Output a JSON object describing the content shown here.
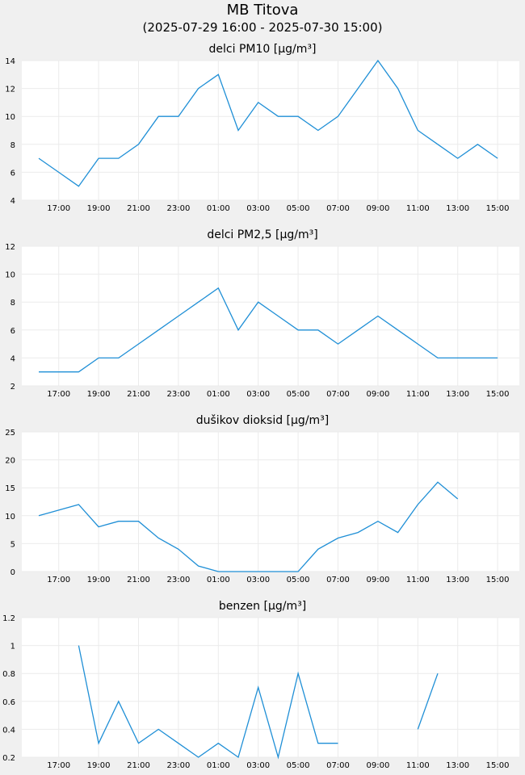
{
  "page": {
    "title": "MB Titova",
    "subtitle": "(2025-07-29 16:00 - 2025-07-30 15:00)"
  },
  "colors": {
    "background": "#f0f0f0",
    "plot_background": "#ffffff",
    "grid": "#ebebeb",
    "line": "#1f8fd6"
  },
  "chart_data": [
    {
      "type": "line",
      "title": "delci PM10 [µg/m³]",
      "x": [
        "16:00",
        "17:00",
        "18:00",
        "19:00",
        "20:00",
        "21:00",
        "22:00",
        "23:00",
        "00:00",
        "01:00",
        "02:00",
        "03:00",
        "04:00",
        "05:00",
        "06:00",
        "07:00",
        "08:00",
        "09:00",
        "10:00",
        "11:00",
        "12:00",
        "13:00",
        "14:00",
        "15:00"
      ],
      "x_tick_labels": [
        "17:00",
        "19:00",
        "21:00",
        "23:00",
        "01:00",
        "03:00",
        "05:00",
        "07:00",
        "09:00",
        "11:00",
        "13:00",
        "15:00"
      ],
      "series": [
        {
          "values": [
            7,
            6,
            5,
            7,
            7,
            8,
            10,
            10,
            12,
            13,
            9,
            11,
            10,
            10,
            9,
            10,
            12,
            14,
            12,
            9,
            8,
            7,
            8,
            7
          ]
        }
      ],
      "ylim": [
        4,
        14
      ],
      "y_ticks": [
        "4",
        "6",
        "8",
        "10",
        "12",
        "14"
      ],
      "grid": true
    },
    {
      "type": "line",
      "title": "delci PM2,5 [µg/m³]",
      "x": [
        "16:00",
        "17:00",
        "18:00",
        "19:00",
        "20:00",
        "21:00",
        "22:00",
        "23:00",
        "00:00",
        "01:00",
        "02:00",
        "03:00",
        "04:00",
        "05:00",
        "06:00",
        "07:00",
        "08:00",
        "09:00",
        "10:00",
        "11:00",
        "12:00",
        "13:00",
        "14:00",
        "15:00"
      ],
      "x_tick_labels": [
        "17:00",
        "19:00",
        "21:00",
        "23:00",
        "01:00",
        "03:00",
        "05:00",
        "07:00",
        "09:00",
        "11:00",
        "13:00",
        "15:00"
      ],
      "series": [
        {
          "values": [
            3,
            3,
            3,
            4,
            4,
            5,
            6,
            7,
            8,
            9,
            6,
            8,
            7,
            6,
            6,
            5,
            6,
            7,
            6,
            5,
            4,
            4,
            4,
            4
          ]
        }
      ],
      "ylim": [
        2,
        12
      ],
      "y_ticks": [
        "2",
        "4",
        "6",
        "8",
        "10",
        "12"
      ],
      "grid": true
    },
    {
      "type": "line",
      "title": "dušikov dioksid [µg/m³]",
      "x": [
        "16:00",
        "17:00",
        "18:00",
        "19:00",
        "20:00",
        "21:00",
        "22:00",
        "23:00",
        "00:00",
        "01:00",
        "02:00",
        "03:00",
        "04:00",
        "05:00",
        "06:00",
        "07:00",
        "08:00",
        "09:00",
        "10:00",
        "11:00",
        "12:00",
        "13:00",
        "14:00",
        "15:00"
      ],
      "x_tick_labels": [
        "17:00",
        "19:00",
        "21:00",
        "23:00",
        "01:00",
        "03:00",
        "05:00",
        "07:00",
        "09:00",
        "11:00",
        "13:00",
        "15:00"
      ],
      "series": [
        {
          "values": [
            10,
            11,
            12,
            8,
            9,
            9,
            6,
            4,
            1,
            0,
            0,
            0,
            0,
            0,
            4,
            6,
            7,
            9,
            7,
            12,
            16,
            13,
            null,
            null
          ]
        }
      ],
      "ylim": [
        0,
        25
      ],
      "y_ticks": [
        "0",
        "5",
        "10",
        "15",
        "20",
        "25"
      ],
      "grid": true
    },
    {
      "type": "line",
      "title": "benzen [µg/m³]",
      "x": [
        "16:00",
        "17:00",
        "18:00",
        "19:00",
        "20:00",
        "21:00",
        "22:00",
        "23:00",
        "00:00",
        "01:00",
        "02:00",
        "03:00",
        "04:00",
        "05:00",
        "06:00",
        "07:00",
        "08:00",
        "09:00",
        "10:00",
        "11:00",
        "12:00",
        "13:00",
        "14:00",
        "15:00"
      ],
      "x_tick_labels": [
        "17:00",
        "19:00",
        "21:00",
        "23:00",
        "01:00",
        "03:00",
        "05:00",
        "07:00",
        "09:00",
        "11:00",
        "13:00",
        "15:00"
      ],
      "series": [
        {
          "values": [
            null,
            null,
            1.0,
            0.3,
            0.6,
            0.3,
            0.4,
            0.3,
            0.2,
            0.3,
            0.2,
            0.7,
            0.2,
            0.8,
            0.3,
            0.3,
            null,
            null,
            null,
            0.4,
            0.8,
            null,
            null,
            null
          ]
        }
      ],
      "ylim": [
        0.2,
        1.2
      ],
      "y_ticks": [
        "0.2",
        "0.4",
        "0.6",
        "0.8",
        "1",
        "1.2"
      ],
      "grid": true
    }
  ]
}
